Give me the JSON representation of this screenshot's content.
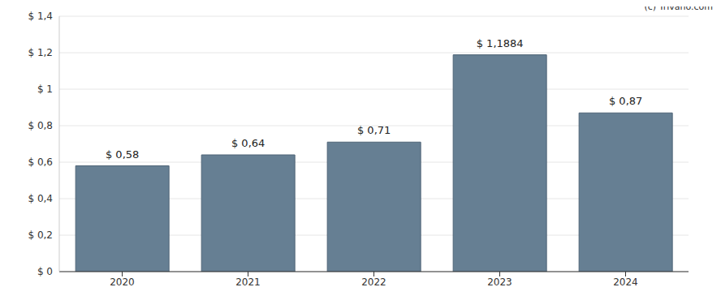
{
  "chart_data": {
    "type": "bar",
    "annotations": [
      "(c) Trivano.com"
    ],
    "categories": [
      "2020",
      "2021",
      "2022",
      "2023",
      "2024"
    ],
    "values": [
      0.58,
      0.64,
      0.71,
      1.1884,
      0.87
    ],
    "value_labels": [
      "$ 0,58",
      "$ 0,64",
      "$ 0,71",
      "$ 1,1884",
      "$ 0,87"
    ],
    "data_labels": true,
    "color": "#667f93",
    "ylim": [
      0,
      1.4
    ],
    "yticks": [
      {
        "value": 0,
        "label": "$ 0"
      },
      {
        "value": 0.2,
        "label": "$ 0,2"
      },
      {
        "value": 0.4,
        "label": "$ 0,4"
      },
      {
        "value": 0.6,
        "label": "$ 0,6"
      },
      {
        "value": 0.8,
        "label": "$ 0,8"
      },
      {
        "value": 1,
        "label": "$ 1"
      },
      {
        "value": 1.2,
        "label": "$ 1,2"
      },
      {
        "value": 1.4,
        "label": "$ 1,4"
      }
    ],
    "grid": true
  }
}
